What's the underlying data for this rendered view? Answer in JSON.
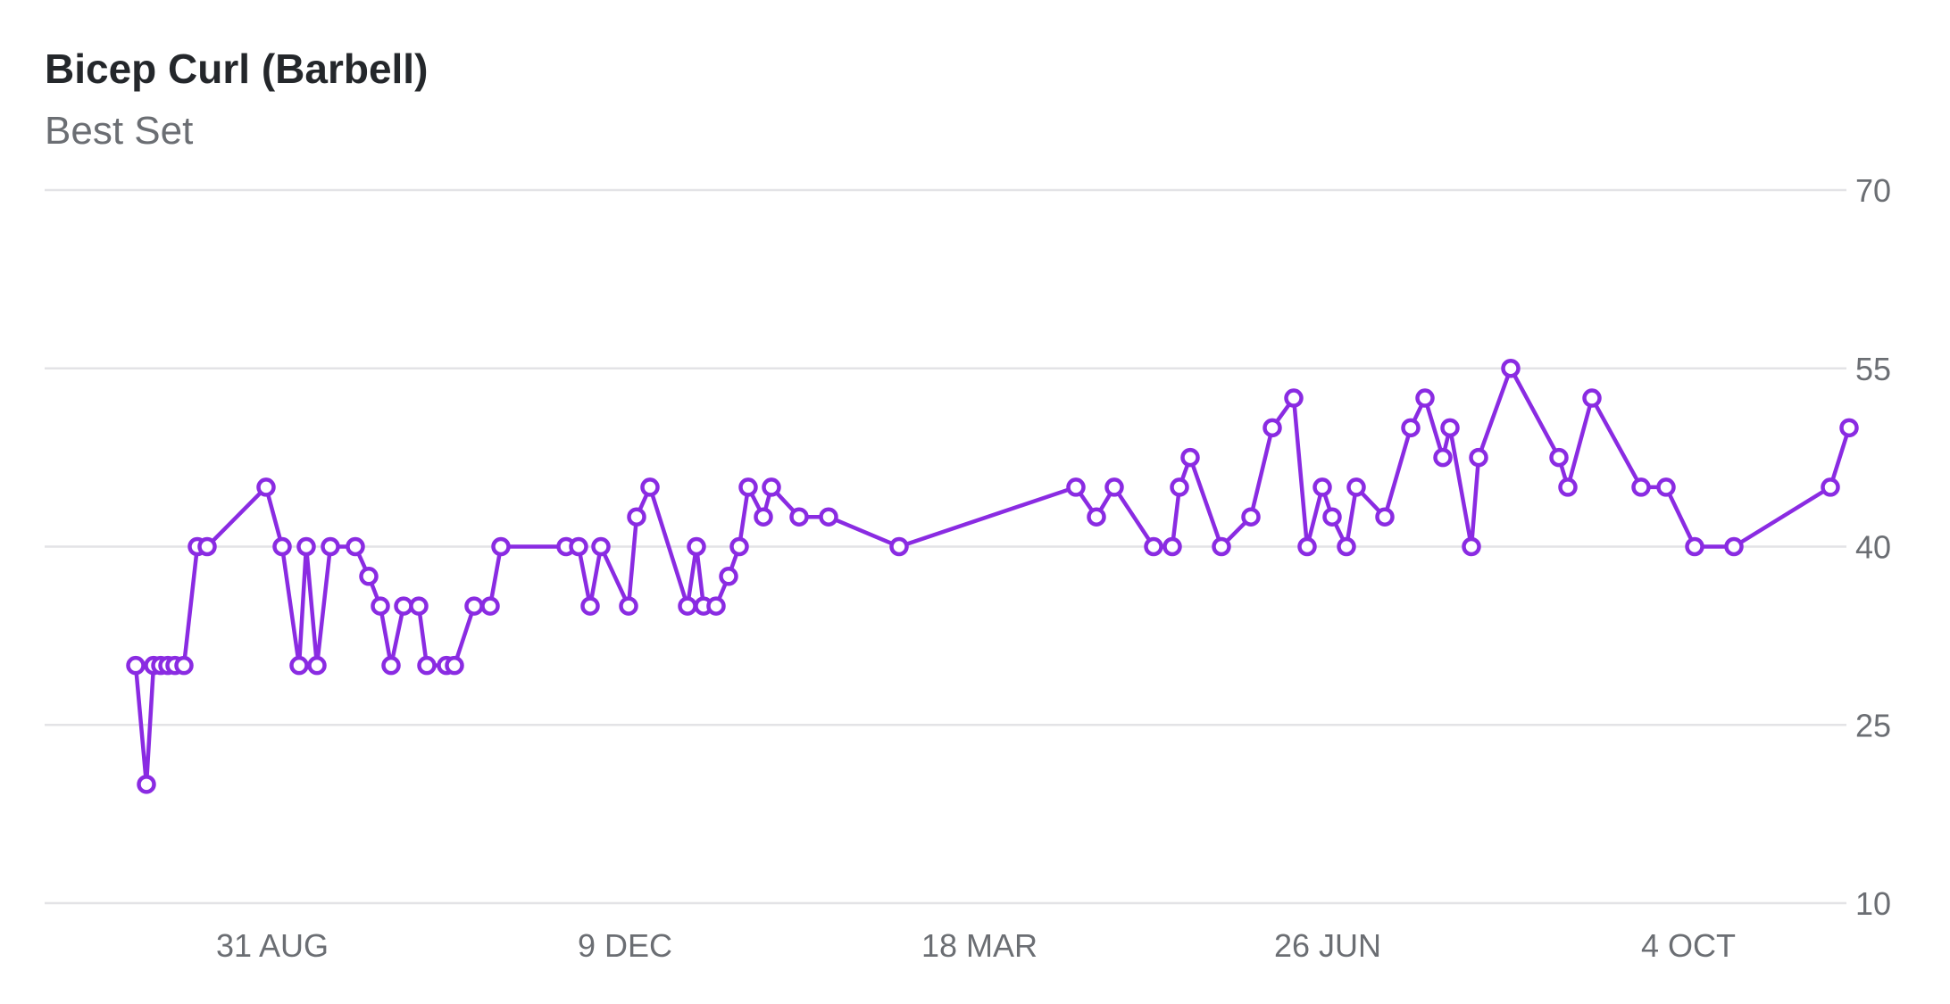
{
  "header": {
    "title": "Bicep Curl (Barbell)",
    "subtitle": "Best Set"
  },
  "colors": {
    "series": "#8a2be2",
    "grid": "#e3e3e6",
    "tick_text": "#6b6e73",
    "title": "#24272b"
  },
  "chart_data": {
    "type": "line",
    "title": "Bicep Curl (Barbell)",
    "subtitle": "Best Set",
    "xlabel": "",
    "ylabel": "",
    "ylim": [
      10,
      70
    ],
    "yticks": [
      10,
      25,
      40,
      55,
      70
    ],
    "y_axis_side": "right",
    "grid": true,
    "xticks": [
      "31 AUG",
      "9 DEC",
      "18 MAR",
      "26 JUN",
      "4 OCT"
    ],
    "series": [
      {
        "values": [
          30,
          20,
          30,
          30,
          30,
          30,
          30,
          40,
          40,
          45,
          40,
          30,
          40,
          30,
          40,
          40,
          37.5,
          35,
          30,
          35,
          35,
          30,
          30,
          30,
          35,
          35,
          40,
          40,
          40,
          35,
          40,
          35,
          42.5,
          45,
          35,
          40,
          35,
          35,
          37.5,
          40,
          45,
          42.5,
          45,
          42.5,
          42.5,
          40,
          45,
          42.5,
          45,
          40,
          40,
          45,
          47.5,
          40,
          42.5,
          50,
          52.5,
          40,
          45,
          42.5,
          40,
          45,
          42.5,
          50,
          52.5,
          47.5,
          50,
          40,
          47.5,
          55,
          47.5,
          45,
          52.5,
          45,
          45,
          40,
          40,
          45,
          50
        ]
      }
    ]
  }
}
